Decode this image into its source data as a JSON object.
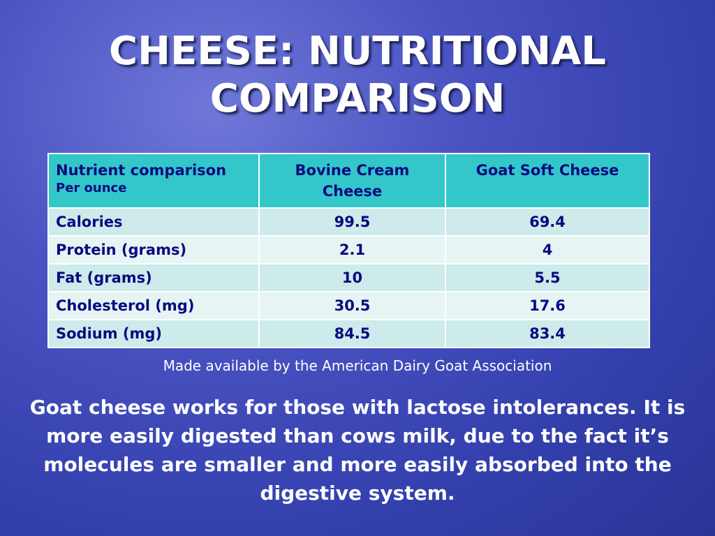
{
  "title": "CHEESE: NUTRITIONAL COMPARISON",
  "table": {
    "headers": [
      {
        "label": "Nutrient comparison",
        "sub": "Per ounce"
      },
      {
        "label": "Bovine Cream Cheese"
      },
      {
        "label": "Goat  Soft Cheese"
      }
    ],
    "rows": [
      [
        "Calories",
        "99.5",
        "69.4"
      ],
      [
        "Protein (grams)",
        "2.1",
        "4"
      ],
      [
        "Fat (grams)",
        "10",
        "5.5"
      ],
      [
        "Cholesterol (mg)",
        "30.5",
        "17.6"
      ],
      [
        "Sodium (mg)",
        "84.5",
        "83.4"
      ]
    ]
  },
  "source": "Made available by the American Dairy Goat Association",
  "body": "Goat cheese works for those with lactose intolerances.  It is more easily digested than cows milk,  due to the fact it’s molecules are smaller and more easily absorbed into the digestive system.",
  "colors": {
    "header": "#33c7c9",
    "text": "#0a0a80"
  }
}
